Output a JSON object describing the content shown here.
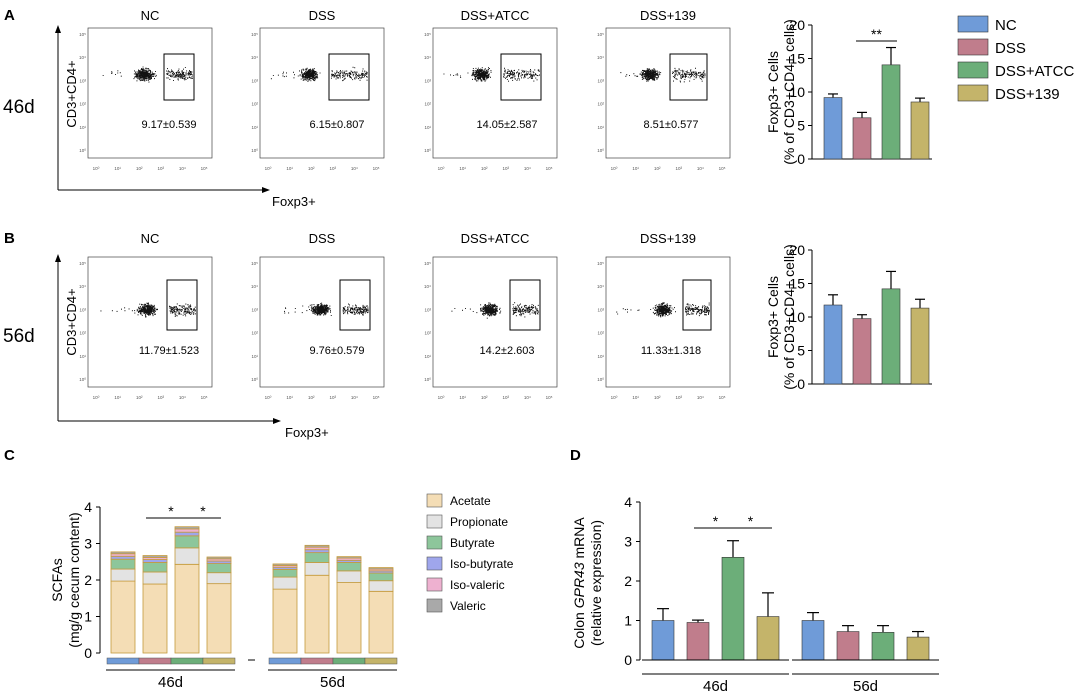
{
  "panels": {
    "A": {
      "letter": "A",
      "day_label": "46d",
      "flow_y_axis_label": "CD3+CD4+",
      "flow_x_axis_label": "Foxp3+",
      "flow_plots": [
        {
          "group": "NC",
          "value": "9.17±0.539"
        },
        {
          "group": "DSS",
          "value": "6.15±0.807"
        },
        {
          "group": "DSS+ATCC",
          "value": "14.05±2.587"
        },
        {
          "group": "DSS+139",
          "value": "8.51±0.577"
        }
      ],
      "flow_tick_labels": [
        "10⁰",
        "10¹",
        "10²",
        "10³",
        "10⁴",
        "10⁵"
      ]
    },
    "B": {
      "letter": "B",
      "day_label": "56d",
      "flow_y_axis_label": "CD3+CD4+",
      "flow_x_axis_label": "Foxp3+",
      "flow_plots": [
        {
          "group": "NC",
          "value": "11.79±1.523"
        },
        {
          "group": "DSS",
          "value": "9.76±0.579"
        },
        {
          "group": "DSS+ATCC",
          "value": "14.2±2.603"
        },
        {
          "group": "DSS+139",
          "value": "11.33±1.318"
        }
      ],
      "flow_tick_labels": [
        "10⁰",
        "10¹",
        "10²",
        "10³",
        "10⁴",
        "10⁵"
      ]
    },
    "C": {
      "letter": "C"
    },
    "D": {
      "letter": "D"
    }
  },
  "legend_groups": [
    {
      "label": "NC",
      "color": "#6f9bd8"
    },
    {
      "label": "DSS",
      "color": "#c07d8c"
    },
    {
      "label": "DSS+ATCC",
      "color": "#6cae79"
    },
    {
      "label": "DSS+139",
      "color": "#c4b46a"
    }
  ],
  "legend_scfa": [
    {
      "label": "Acetate",
      "color": "#f4ddb5"
    },
    {
      "label": "Propionate",
      "color": "#e3e3e3"
    },
    {
      "label": "Butyrate",
      "color": "#8dc69b"
    },
    {
      "label": "Iso-butyrate",
      "color": "#9fa6ec"
    },
    {
      "label": "Iso-valeric",
      "color": "#eeb1d0"
    },
    {
      "label": "Valeric",
      "color": "#a9a9a9"
    }
  ],
  "chart_data": [
    {
      "id": "A-bar",
      "type": "bar",
      "title": "",
      "ylabel": "Foxp3+ Cells",
      "ylabel2": "(% of CD3+CD4+ cells)",
      "categories": [
        "NC",
        "DSS",
        "DSS+ATCC",
        "DSS+139"
      ],
      "values": [
        9.17,
        6.15,
        14.05,
        8.51
      ],
      "errors": [
        0.539,
        0.807,
        2.587,
        0.577
      ],
      "colors": [
        "#6f9bd8",
        "#c07d8c",
        "#6cae79",
        "#c4b46a"
      ],
      "ylim": [
        0,
        20
      ],
      "yticks": [
        0,
        5,
        10,
        15,
        20
      ],
      "significance": [
        {
          "from": 1,
          "to": 2,
          "label": "**"
        }
      ]
    },
    {
      "id": "B-bar",
      "type": "bar",
      "title": "",
      "ylabel": "Foxp3+ Cells",
      "ylabel2": "(% of CD3+CD4+ cells)",
      "categories": [
        "NC",
        "DSS",
        "DSS+ATCC",
        "DSS+139"
      ],
      "values": [
        11.79,
        9.76,
        14.2,
        11.33
      ],
      "errors": [
        1.523,
        0.579,
        2.603,
        1.318
      ],
      "colors": [
        "#6f9bd8",
        "#c07d8c",
        "#6cae79",
        "#c4b46a"
      ],
      "ylim": [
        0,
        20
      ],
      "yticks": [
        0,
        5,
        10,
        15,
        20
      ],
      "significance": []
    },
    {
      "id": "C-stacked",
      "type": "bar",
      "stacked": true,
      "ylabel": "SCFAs",
      "ylabel2": "(mg/g cecum content)",
      "ylim": [
        0,
        4
      ],
      "yticks": [
        0,
        1,
        2,
        3,
        4
      ],
      "group_labels": [
        "46d",
        "56d"
      ],
      "categories": [
        "NC",
        "DSS",
        "DSS+ATCC",
        "DSS+139"
      ],
      "category_colors": [
        "#6f9bd8",
        "#c07d8c",
        "#6cae79",
        "#c4b46a"
      ],
      "series": [
        {
          "name": "Acetate",
          "values_46d": [
            1.97,
            1.89,
            2.43,
            1.9
          ],
          "values_56d": [
            1.75,
            2.13,
            1.93,
            1.69
          ]
        },
        {
          "name": "Propionate",
          "values_46d": [
            0.33,
            0.33,
            0.45,
            0.3
          ],
          "values_56d": [
            0.33,
            0.35,
            0.32,
            0.29
          ]
        },
        {
          "name": "Butyrate",
          "values_46d": [
            0.27,
            0.26,
            0.33,
            0.25
          ],
          "values_56d": [
            0.21,
            0.27,
            0.23,
            0.21
          ]
        },
        {
          "name": "Iso-butyrate",
          "values_46d": [
            0.08,
            0.08,
            0.1,
            0.07
          ],
          "values_56d": [
            0.06,
            0.08,
            0.06,
            0.06
          ]
        },
        {
          "name": "Iso-valeric",
          "values_46d": [
            0.07,
            0.06,
            0.09,
            0.06
          ],
          "values_56d": [
            0.05,
            0.07,
            0.06,
            0.05
          ]
        },
        {
          "name": "Valeric",
          "values_46d": [
            0.05,
            0.05,
            0.06,
            0.05
          ],
          "values_56d": [
            0.04,
            0.05,
            0.04,
            0.04
          ]
        }
      ],
      "significance": [
        {
          "from": 1,
          "to": 2,
          "label": "*"
        },
        {
          "from": 2,
          "to": 3,
          "label": "*"
        }
      ]
    },
    {
      "id": "D-bar",
      "type": "bar",
      "ylabel_prefix": "Colon ",
      "ylabel_gene": "GPR43",
      "ylabel_suffix": " mRNA",
      "ylabel2": "(relative expression)",
      "ylim": [
        0,
        4
      ],
      "yticks": [
        0,
        1,
        2,
        3,
        4
      ],
      "group_labels": [
        "46d",
        "56d"
      ],
      "categories": [
        "NC",
        "DSS",
        "DSS+ATCC",
        "DSS+139"
      ],
      "colors": [
        "#6f9bd8",
        "#c07d8c",
        "#6cae79",
        "#c4b46a"
      ],
      "values_46d": [
        1.0,
        0.95,
        2.6,
        1.1
      ],
      "errors_46d": [
        0.3,
        0.06,
        0.42,
        0.6
      ],
      "values_56d": [
        1.0,
        0.72,
        0.7,
        0.58
      ],
      "errors_56d": [
        0.2,
        0.15,
        0.17,
        0.14
      ],
      "significance": [
        {
          "from": 1,
          "to": 2,
          "label": "*"
        },
        {
          "from": 2,
          "to": 3,
          "label": "*"
        }
      ]
    }
  ]
}
